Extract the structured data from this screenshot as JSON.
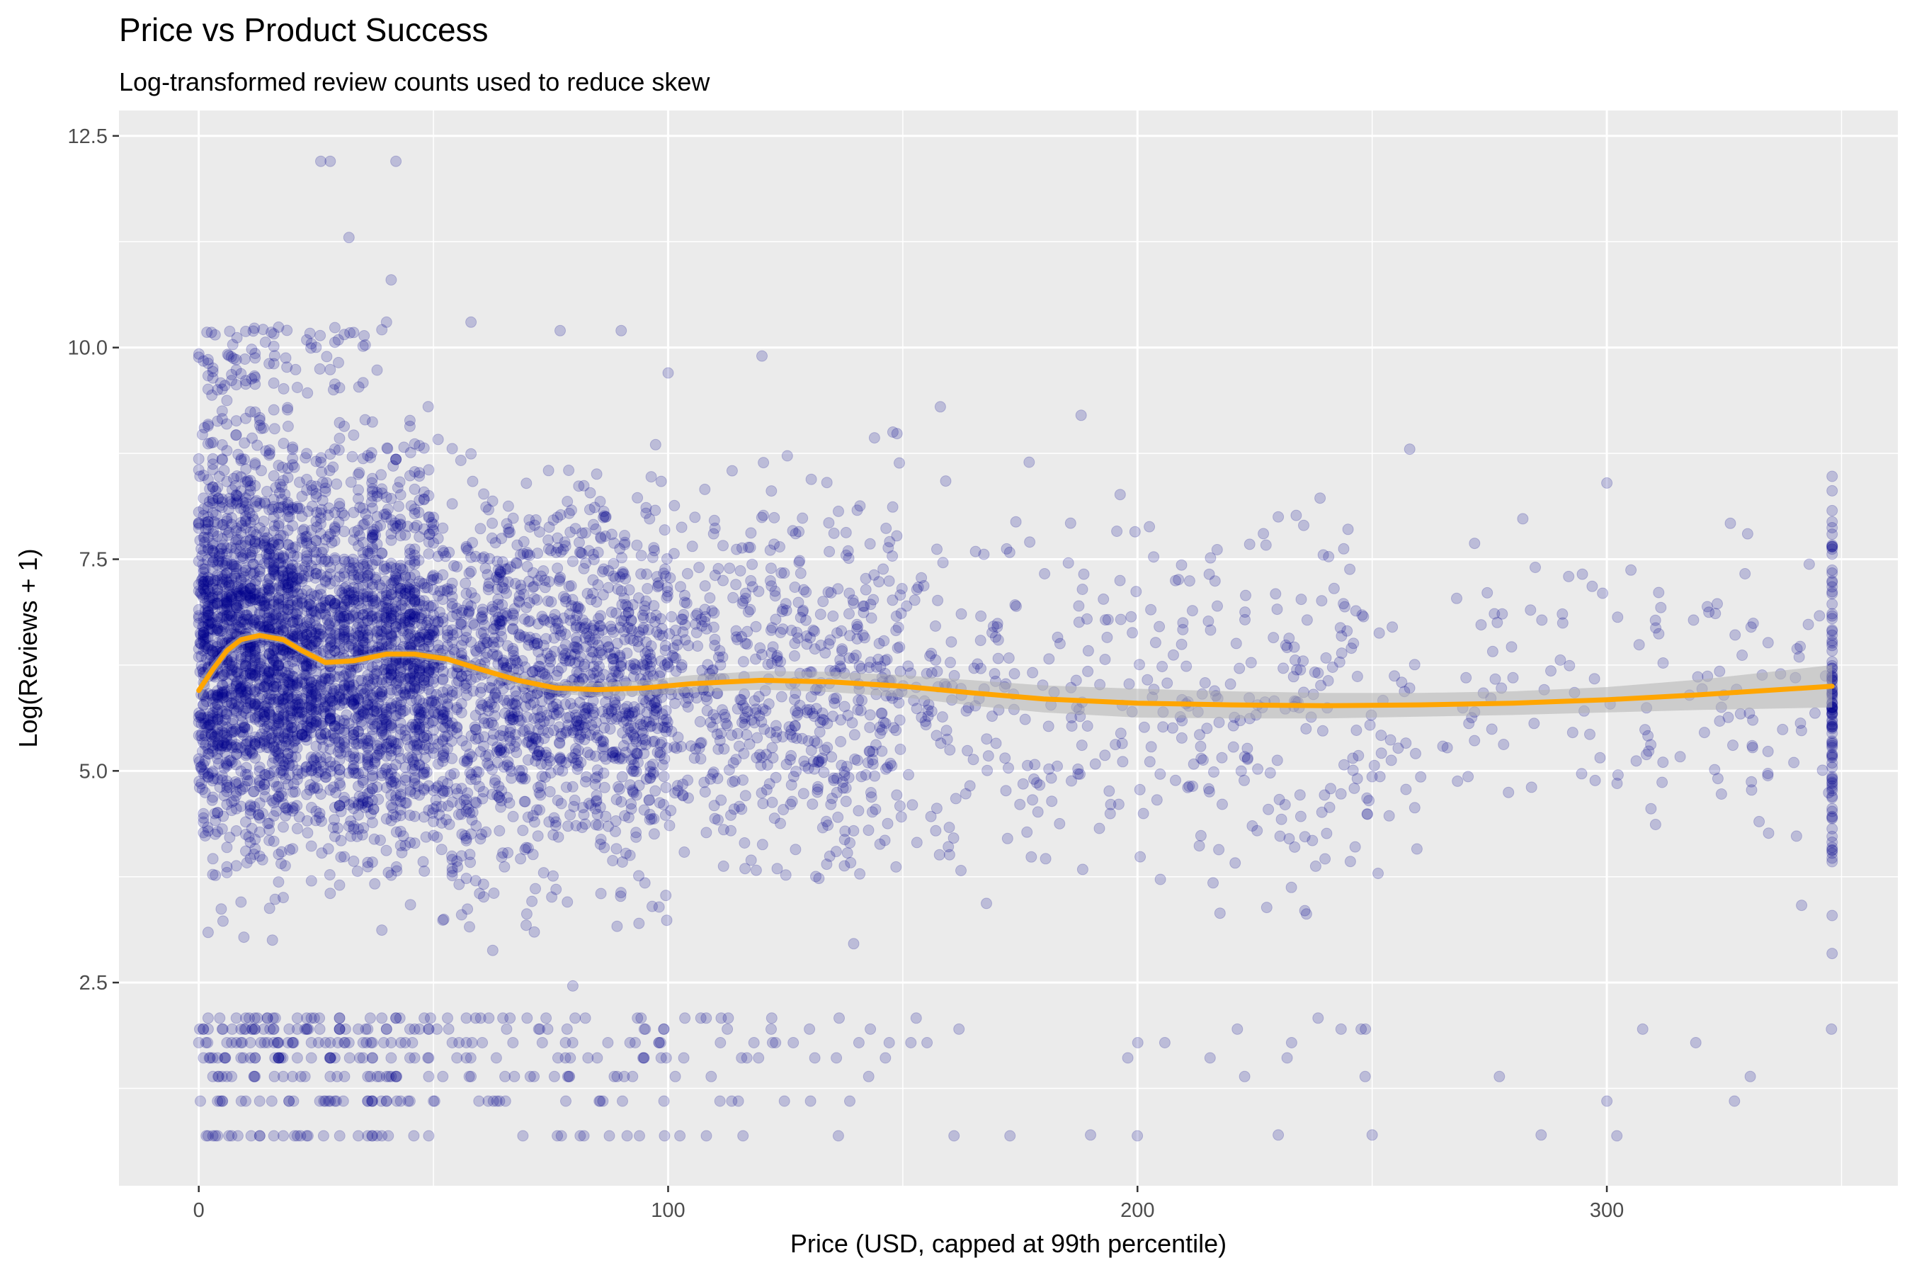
{
  "chart_data": {
    "type": "scatter",
    "title": "Price vs Product Success",
    "subtitle": "Log-transformed review counts used to reduce skew",
    "xlabel": "Price (USD, capped at 99th percentile)",
    "ylabel": "Log(Reviews + 1)",
    "xlim": [
      -17,
      362
    ],
    "ylim": [
      0.1,
      12.8
    ],
    "x_ticks": [
      0,
      100,
      200,
      300
    ],
    "x_tick_labels": [
      "0",
      "100",
      "200",
      "300"
    ],
    "y_ticks": [
      2.5,
      5.0,
      7.5,
      10.0,
      12.5
    ],
    "y_tick_labels": [
      "2.5",
      "5.0",
      "7.5",
      "10.0",
      "12.5"
    ],
    "grid": true,
    "legend": "none",
    "colors": {
      "panel_background": "#ebebeb",
      "grid": "#ffffff",
      "points": "#00008b",
      "smooth_line": "#ffa500",
      "confidence_band": "#b3b3b3"
    },
    "point_alpha": 0.2,
    "point_count_estimate": 6000,
    "price_cap": 348,
    "density_profile": [
      {
        "x_range": [
          0,
          20
        ],
        "relative_density": 1.0,
        "y_mean": 6.5,
        "y_spread": 1.9
      },
      {
        "x_range": [
          20,
          50
        ],
        "relative_density": 0.7,
        "y_mean": 6.3,
        "y_spread": 1.8
      },
      {
        "x_range": [
          50,
          100
        ],
        "relative_density": 0.35,
        "y_mean": 6.0,
        "y_spread": 1.8
      },
      {
        "x_range": [
          100,
          150
        ],
        "relative_density": 0.15,
        "y_mean": 6.0,
        "y_spread": 1.7
      },
      {
        "x_range": [
          150,
          250
        ],
        "relative_density": 0.05,
        "y_mean": 5.8,
        "y_spread": 1.6
      },
      {
        "x_range": [
          250,
          348
        ],
        "relative_density": 0.02,
        "y_mean": 5.9,
        "y_spread": 1.5
      }
    ],
    "special_points": [
      {
        "x": 26,
        "y": 12.2
      },
      {
        "x": 28,
        "y": 12.2
      },
      {
        "x": 42,
        "y": 12.2
      },
      {
        "x": 32,
        "y": 11.3
      },
      {
        "x": 41,
        "y": 10.8
      },
      {
        "x": 40,
        "y": 10.3
      },
      {
        "x": 58,
        "y": 10.3
      },
      {
        "x": 90,
        "y": 10.2
      },
      {
        "x": 77,
        "y": 10.2
      },
      {
        "x": 120,
        "y": 9.9
      },
      {
        "x": 100,
        "y": 9.7
      },
      {
        "x": 158,
        "y": 9.3
      },
      {
        "x": 188,
        "y": 9.2
      },
      {
        "x": 258,
        "y": 8.8
      },
      {
        "x": 300,
        "y": 8.4
      },
      {
        "x": 330,
        "y": 7.8
      },
      {
        "x": 300,
        "y": 1.1
      },
      {
        "x": 286,
        "y": 0.7
      },
      {
        "x": 250,
        "y": 0.7
      },
      {
        "x": 230,
        "y": 0.7
      },
      {
        "x": 190,
        "y": 0.7
      },
      {
        "x": 270,
        "y": 6.1
      },
      {
        "x": 280,
        "y": 6.1
      },
      {
        "x": 230,
        "y": 8.0
      }
    ],
    "smooth": {
      "x": [
        0,
        3,
        6,
        9,
        13,
        18,
        22,
        27,
        33,
        40,
        46,
        53,
        60,
        68,
        76,
        85,
        95,
        105,
        120,
        135,
        150,
        165,
        180,
        200,
        220,
        240,
        260,
        280,
        300,
        320,
        348
      ],
      "y": [
        5.95,
        6.2,
        6.42,
        6.55,
        6.6,
        6.55,
        6.42,
        6.28,
        6.3,
        6.38,
        6.38,
        6.32,
        6.2,
        6.07,
        5.98,
        5.96,
        5.98,
        6.03,
        6.07,
        6.05,
        6.0,
        5.92,
        5.85,
        5.8,
        5.78,
        5.77,
        5.78,
        5.8,
        5.84,
        5.9,
        6.0
      ],
      "se_half_width": [
        0.12,
        0.09,
        0.07,
        0.06,
        0.05,
        0.05,
        0.05,
        0.05,
        0.05,
        0.05,
        0.05,
        0.06,
        0.06,
        0.07,
        0.07,
        0.08,
        0.09,
        0.1,
        0.11,
        0.12,
        0.13,
        0.15,
        0.16,
        0.17,
        0.16,
        0.15,
        0.14,
        0.14,
        0.15,
        0.18,
        0.25
      ]
    }
  }
}
